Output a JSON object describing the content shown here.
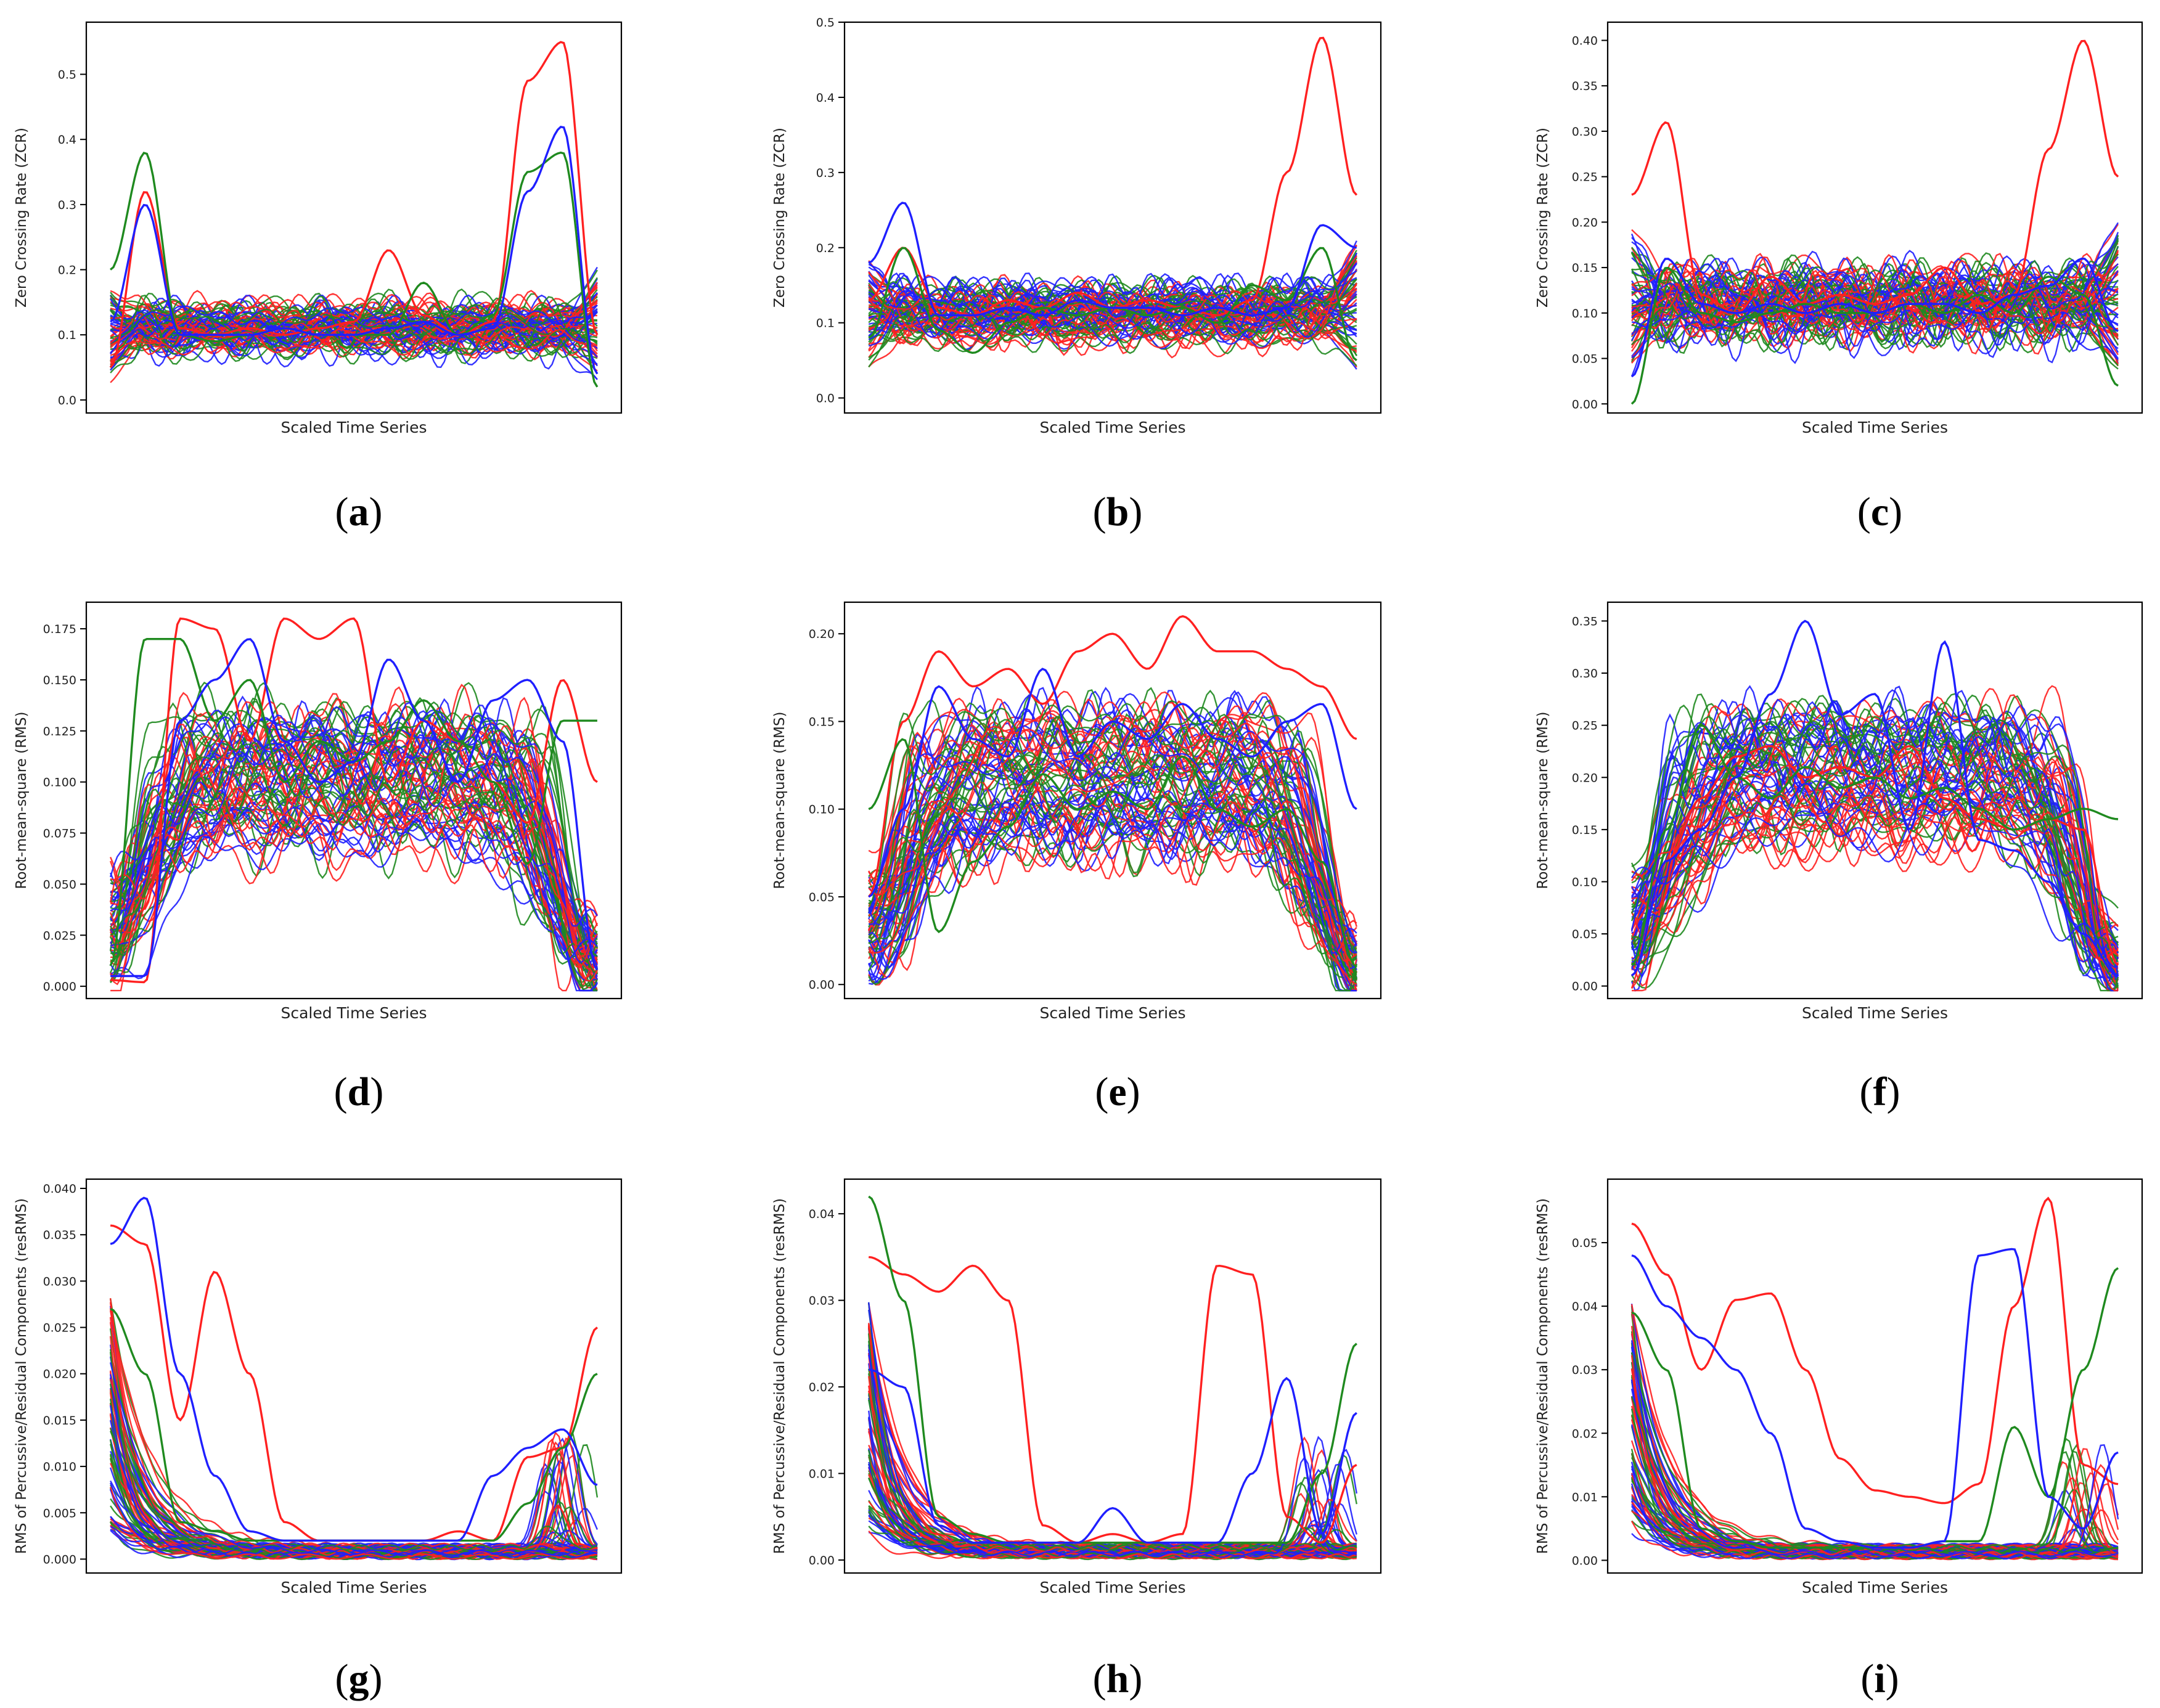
{
  "colors": {
    "red": "#ff2020",
    "green": "#1f8a1f",
    "blue": "#1f1fff",
    "frame": "#000000"
  },
  "panels": [
    {
      "caption": "(a)",
      "letter": "a",
      "ylabel": "Zero Crossing Rate (ZCR)",
      "xlabel": "Scaled Time Series",
      "ylim": [
        -0.02,
        0.58
      ],
      "yticks": [
        "0.0",
        "0.1",
        "0.2",
        "0.3",
        "0.4",
        "0.5"
      ],
      "kind": "zcr"
    },
    {
      "caption": "(b)",
      "letter": "b",
      "ylabel": "Zero Crossing Rate (ZCR)",
      "xlabel": "Scaled Time Series",
      "ylim": [
        -0.02,
        0.5
      ],
      "yticks": [
        "0.0",
        "0.1",
        "0.2",
        "0.3",
        "0.4",
        "0.5"
      ],
      "kind": "zcr"
    },
    {
      "caption": "(c)",
      "letter": "c",
      "ylabel": "Zero Crossing Rate (ZCR)",
      "xlabel": "Scaled Time Series",
      "ylim": [
        -0.01,
        0.42
      ],
      "yticks": [
        "0.00",
        "0.05",
        "0.10",
        "0.15",
        "0.20",
        "0.25",
        "0.30",
        "0.35",
        "0.40"
      ],
      "kind": "zcr"
    },
    {
      "caption": "(d)",
      "letter": "d",
      "ylabel": "Root-mean-square (RMS)",
      "xlabel": "Scaled Time Series",
      "ylim": [
        -0.006,
        0.188
      ],
      "yticks": [
        "0.000",
        "0.025",
        "0.050",
        "0.075",
        "0.100",
        "0.125",
        "0.150",
        "0.175"
      ],
      "kind": "rms"
    },
    {
      "caption": "(e)",
      "letter": "e",
      "ylabel": "Root-mean-square (RMS)",
      "xlabel": "Scaled Time Series",
      "ylim": [
        -0.008,
        0.218
      ],
      "yticks": [
        "0.00",
        "0.05",
        "0.10",
        "0.15",
        "0.20"
      ],
      "kind": "rms"
    },
    {
      "caption": "(f)",
      "letter": "f",
      "ylabel": "Root-mean-square (RMS)",
      "xlabel": "Scaled Time Series",
      "ylim": [
        -0.012,
        0.368
      ],
      "yticks": [
        "0.00",
        "0.05",
        "0.10",
        "0.15",
        "0.20",
        "0.25",
        "0.30",
        "0.35"
      ],
      "kind": "rms"
    },
    {
      "caption": "(g)",
      "letter": "g",
      "ylabel": "RMS of Percussive/Residual Components (resRMS)",
      "xlabel": "Scaled Time Series",
      "ylim": [
        -0.0015,
        0.041
      ],
      "yticks": [
        "0.000",
        "0.005",
        "0.010",
        "0.015",
        "0.020",
        "0.025",
        "0.030",
        "0.035",
        "0.040"
      ],
      "kind": "res"
    },
    {
      "caption": "(h)",
      "letter": "h",
      "ylabel": "RMS of Percussive/Residual Components (resRMS)",
      "xlabel": "Scaled Time Series",
      "ylim": [
        -0.0015,
        0.044
      ],
      "yticks": [
        "0.00",
        "0.01",
        "0.02",
        "0.03",
        "0.04"
      ],
      "kind": "res"
    },
    {
      "caption": "(i)",
      "letter": "i",
      "ylabel": "RMS of Percussive/Residual Components (resRMS)",
      "xlabel": "Scaled Time Series",
      "ylim": [
        -0.002,
        0.06
      ],
      "yticks": [
        "0.00",
        "0.01",
        "0.02",
        "0.03",
        "0.04",
        "0.05"
      ],
      "kind": "res"
    }
  ],
  "chart_data": [
    {
      "type": "line",
      "panel": "a",
      "ylabel": "Zero Crossing Rate (ZCR)",
      "xlabel": "Scaled Time Series",
      "ylim": [
        -0.02,
        0.58
      ],
      "series": [
        {
          "name": "red group",
          "color": "red",
          "values": [
            0.05,
            0.32,
            0.11,
            0.1,
            0.11,
            0.1,
            0.11,
            0.12,
            0.23,
            0.13,
            0.1,
            0.12,
            0.49,
            0.55,
            0.1
          ]
        },
        {
          "name": "green group",
          "color": "green",
          "values": [
            0.2,
            0.38,
            0.1,
            0.09,
            0.1,
            0.11,
            0.1,
            0.1,
            0.1,
            0.18,
            0.1,
            0.13,
            0.35,
            0.38,
            0.02
          ]
        },
        {
          "name": "blue group",
          "color": "blue",
          "values": [
            0.12,
            0.3,
            0.1,
            0.1,
            0.1,
            0.11,
            0.1,
            0.1,
            0.11,
            0.12,
            0.1,
            0.11,
            0.32,
            0.42,
            0.04
          ]
        }
      ]
    },
    {
      "type": "line",
      "panel": "b",
      "ylabel": "Zero Crossing Rate (ZCR)",
      "xlabel": "Scaled Time Series",
      "ylim": [
        -0.02,
        0.5
      ],
      "series": [
        {
          "name": "red group",
          "color": "red",
          "values": [
            0.13,
            0.2,
            0.12,
            0.11,
            0.13,
            0.12,
            0.14,
            0.12,
            0.13,
            0.12,
            0.11,
            0.13,
            0.3,
            0.48,
            0.27
          ]
        },
        {
          "name": "green group",
          "color": "green",
          "values": [
            0.08,
            0.2,
            0.09,
            0.06,
            0.1,
            0.12,
            0.11,
            0.12,
            0.11,
            0.12,
            0.1,
            0.15,
            0.13,
            0.2,
            0.05
          ]
        },
        {
          "name": "blue group",
          "color": "blue",
          "values": [
            0.18,
            0.26,
            0.11,
            0.11,
            0.12,
            0.11,
            0.13,
            0.12,
            0.12,
            0.11,
            0.12,
            0.11,
            0.12,
            0.23,
            0.2
          ]
        }
      ]
    },
    {
      "type": "line",
      "panel": "c",
      "ylabel": "Zero Crossing Rate (ZCR)",
      "xlabel": "Scaled Time Series",
      "ylim": [
        -0.01,
        0.42
      ],
      "series": [
        {
          "name": "red group",
          "color": "red",
          "values": [
            0.23,
            0.31,
            0.12,
            0.1,
            0.14,
            0.11,
            0.12,
            0.11,
            0.12,
            0.15,
            0.11,
            0.12,
            0.28,
            0.4,
            0.25
          ]
        },
        {
          "name": "green group",
          "color": "green",
          "values": [
            0.0,
            0.15,
            0.1,
            0.09,
            0.1,
            0.11,
            0.1,
            0.1,
            0.11,
            0.1,
            0.12,
            0.1,
            0.14,
            0.12,
            0.02
          ]
        },
        {
          "name": "blue group",
          "color": "blue",
          "values": [
            0.03,
            0.16,
            0.11,
            0.1,
            0.11,
            0.1,
            0.11,
            0.1,
            0.11,
            0.11,
            0.1,
            0.12,
            0.13,
            0.16,
            0.08
          ]
        }
      ]
    },
    {
      "type": "line",
      "panel": "d",
      "ylabel": "Root-mean-square (RMS)",
      "xlabel": "Scaled Time Series",
      "ylim": [
        -0.006,
        0.188
      ],
      "series": [
        {
          "name": "red group",
          "color": "red",
          "values": [
            0.003,
            0.002,
            0.18,
            0.175,
            0.12,
            0.18,
            0.17,
            0.18,
            0.1,
            0.13,
            0.12,
            0.1,
            0.08,
            0.15,
            0.1
          ]
        },
        {
          "name": "green group",
          "color": "green",
          "values": [
            0.01,
            0.17,
            0.17,
            0.13,
            0.15,
            0.1,
            0.12,
            0.11,
            0.12,
            0.14,
            0.12,
            0.1,
            0.06,
            0.13,
            0.13
          ]
        },
        {
          "name": "blue group",
          "color": "blue",
          "values": [
            0.005,
            0.005,
            0.13,
            0.15,
            0.17,
            0.12,
            0.1,
            0.11,
            0.16,
            0.13,
            0.1,
            0.14,
            0.15,
            0.12,
            0.008
          ]
        }
      ]
    },
    {
      "type": "line",
      "panel": "e",
      "ylabel": "Root-mean-square (RMS)",
      "xlabel": "Scaled Time Series",
      "ylim": [
        -0.008,
        0.218
      ],
      "series": [
        {
          "name": "red group",
          "color": "red",
          "values": [
            0.05,
            0.15,
            0.19,
            0.17,
            0.18,
            0.16,
            0.19,
            0.2,
            0.18,
            0.21,
            0.19,
            0.19,
            0.18,
            0.17,
            0.14
          ]
        },
        {
          "name": "green group",
          "color": "green",
          "values": [
            0.1,
            0.14,
            0.03,
            0.07,
            0.09,
            0.12,
            0.1,
            0.11,
            0.1,
            0.13,
            0.1,
            0.09,
            0.1,
            0.07,
            0.01
          ]
        },
        {
          "name": "blue group",
          "color": "blue",
          "values": [
            0.05,
            0.1,
            0.17,
            0.14,
            0.13,
            0.18,
            0.13,
            0.15,
            0.14,
            0.16,
            0.14,
            0.13,
            0.15,
            0.16,
            0.1
          ]
        }
      ]
    },
    {
      "type": "line",
      "panel": "f",
      "ylabel": "Root-mean-square (RMS)",
      "xlabel": "Scaled Time Series",
      "ylim": [
        -0.012,
        0.368
      ],
      "series": [
        {
          "name": "red group",
          "color": "red",
          "values": [
            0.01,
            0.12,
            0.18,
            0.22,
            0.23,
            0.2,
            0.21,
            0.2,
            0.23,
            0.18,
            0.16,
            0.15,
            0.16,
            0.15,
            0.02
          ]
        },
        {
          "name": "green group",
          "color": "green",
          "values": [
            0.02,
            0.15,
            0.25,
            0.2,
            0.18,
            0.21,
            0.19,
            0.2,
            0.18,
            0.19,
            0.17,
            0.15,
            0.16,
            0.17,
            0.16
          ]
        },
        {
          "name": "blue group",
          "color": "blue",
          "values": [
            0.01,
            0.12,
            0.15,
            0.2,
            0.28,
            0.35,
            0.26,
            0.28,
            0.15,
            0.33,
            0.14,
            0.13,
            0.1,
            0.05,
            0.01
          ]
        }
      ]
    },
    {
      "type": "line",
      "panel": "g",
      "ylabel": "RMS of Percussive/Residual Components (resRMS)",
      "xlabel": "Scaled Time Series",
      "ylim": [
        -0.0015,
        0.041
      ],
      "series": [
        {
          "name": "red group",
          "color": "red",
          "values": [
            0.036,
            0.034,
            0.015,
            0.031,
            0.02,
            0.004,
            0.002,
            0.002,
            0.002,
            0.002,
            0.003,
            0.002,
            0.011,
            0.012,
            0.025
          ]
        },
        {
          "name": "green group",
          "color": "green",
          "values": [
            0.027,
            0.02,
            0.004,
            0.003,
            0.002,
            0.002,
            0.002,
            0.002,
            0.002,
            0.002,
            0.002,
            0.002,
            0.006,
            0.012,
            0.02
          ]
        },
        {
          "name": "blue group",
          "color": "blue",
          "values": [
            0.034,
            0.039,
            0.02,
            0.009,
            0.003,
            0.002,
            0.002,
            0.002,
            0.002,
            0.002,
            0.002,
            0.009,
            0.012,
            0.014,
            0.008
          ]
        }
      ]
    },
    {
      "type": "line",
      "panel": "h",
      "ylabel": "RMS of Percussive/Residual Components (resRMS)",
      "xlabel": "Scaled Time Series",
      "ylim": [
        -0.0015,
        0.044
      ],
      "series": [
        {
          "name": "red group",
          "color": "red",
          "values": [
            0.035,
            0.033,
            0.031,
            0.034,
            0.03,
            0.004,
            0.002,
            0.003,
            0.002,
            0.003,
            0.034,
            0.033,
            0.005,
            0.002,
            0.011
          ]
        },
        {
          "name": "green group",
          "color": "green",
          "values": [
            0.042,
            0.03,
            0.005,
            0.003,
            0.002,
            0.002,
            0.002,
            0.002,
            0.002,
            0.002,
            0.002,
            0.002,
            0.002,
            0.01,
            0.025
          ]
        },
        {
          "name": "blue group",
          "color": "blue",
          "values": [
            0.022,
            0.02,
            0.004,
            0.002,
            0.002,
            0.002,
            0.002,
            0.006,
            0.002,
            0.002,
            0.002,
            0.01,
            0.021,
            0.003,
            0.017
          ]
        }
      ]
    },
    {
      "type": "line",
      "panel": "i",
      "ylabel": "RMS of Percussive/Residual Components (resRMS)",
      "xlabel": "Scaled Time Series",
      "ylim": [
        -0.002,
        0.06
      ],
      "series": [
        {
          "name": "red group",
          "color": "red",
          "values": [
            0.053,
            0.045,
            0.03,
            0.041,
            0.042,
            0.03,
            0.016,
            0.011,
            0.01,
            0.009,
            0.012,
            0.04,
            0.057,
            0.015,
            0.012
          ]
        },
        {
          "name": "green group",
          "color": "green",
          "values": [
            0.039,
            0.03,
            0.005,
            0.003,
            0.002,
            0.002,
            0.002,
            0.002,
            0.002,
            0.003,
            0.003,
            0.021,
            0.01,
            0.03,
            0.046
          ]
        },
        {
          "name": "blue group",
          "color": "blue",
          "values": [
            0.048,
            0.04,
            0.035,
            0.03,
            0.02,
            0.005,
            0.003,
            0.002,
            0.002,
            0.003,
            0.048,
            0.049,
            0.01,
            0.005,
            0.017
          ]
        }
      ]
    }
  ]
}
